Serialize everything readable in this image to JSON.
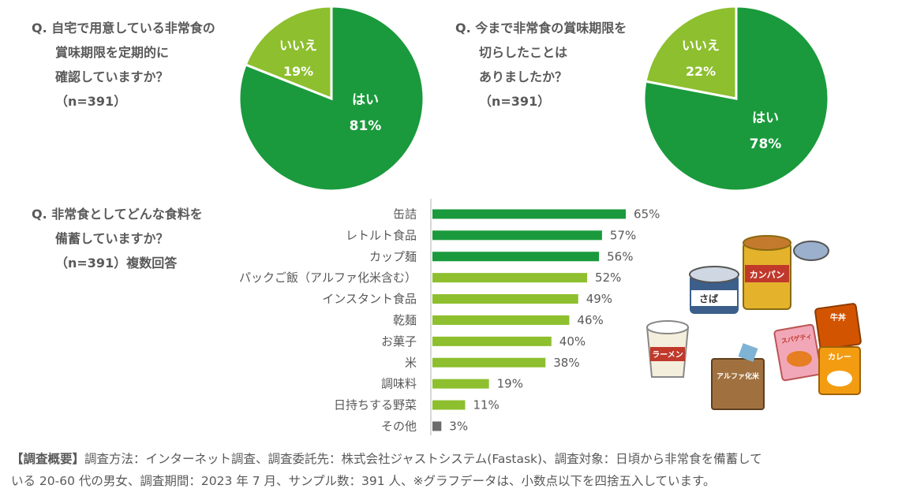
{
  "charts": [
    {
      "type": "pie",
      "question": [
        "Q.",
        "自宅で用意している非常食の",
        "賞味期限を定期的に",
        "確認していますか？",
        "（n=391）"
      ],
      "slices": [
        {
          "label": "はい",
          "value": 81,
          "value_label": "81%"
        },
        {
          "label": "いいえ",
          "value": 19,
          "value_label": "19%"
        }
      ]
    },
    {
      "type": "pie",
      "question": [
        "Q.",
        "今まで非常食の賞味期限を",
        "切らしたことは",
        "ありましたか？",
        "（n=391）"
      ],
      "slices": [
        {
          "label": "はい",
          "value": 78,
          "value_label": "78%"
        },
        {
          "label": "いいえ",
          "value": 22,
          "value_label": "22%"
        }
      ]
    }
  ],
  "chart_data": [
    {
      "type": "pie",
      "title": "自宅で用意している非常食の賞味期限を定期的に確認していますか？（n=391）",
      "categories": [
        "はい",
        "いいえ"
      ],
      "values": [
        81,
        19
      ]
    },
    {
      "type": "pie",
      "title": "今まで非常食の賞味期限を切らしたことはありましたか？（n=391）",
      "categories": [
        "はい",
        "いいえ"
      ],
      "values": [
        78,
        22
      ]
    },
    {
      "type": "bar",
      "orientation": "horizontal",
      "title": "非常食としてどんな食料を備蓄していますか？（n=391）複数回答",
      "categories": [
        "缶詰",
        "レトルト食品",
        "カップ麺",
        "パックご飯（アルファ化米含む）",
        "インスタント食品",
        "乾麺",
        "お菓子",
        "米",
        "調味料",
        "日持ちする野菜",
        "その他"
      ],
      "values": [
        65,
        57,
        56,
        52,
        49,
        46,
        40,
        38,
        19,
        11,
        3
      ],
      "value_labels": [
        "65%",
        "57%",
        "56%",
        "52%",
        "49%",
        "46%",
        "40%",
        "38%",
        "19%",
        "11%",
        "3%"
      ],
      "bar_colors": [
        "#1a9a3c",
        "#1a9a3c",
        "#1a9a3c",
        "#8dbf2e",
        "#8dbf2e",
        "#8dbf2e",
        "#8dbf2e",
        "#8dbf2e",
        "#8dbf2e",
        "#8dbf2e",
        "#6b6b6b"
      ],
      "xlim": [
        0,
        100
      ]
    }
  ],
  "bar_question": [
    "Q.",
    "非常食としてどんな食料を",
    "備蓄していますか？",
    "（n=391）複数回答"
  ],
  "illustration_labels": [
    "さば",
    "カンパン",
    "ラーメン",
    "スパゲティ",
    "牛丼",
    "カレー",
    "アルファ化米"
  ],
  "colors": {
    "yes": "#1a9a3c",
    "no": "#8dbf2e",
    "other": "#6b6b6b",
    "text": "#595959"
  },
  "footer": {
    "heading": "【調査概要】",
    "line1": "調査方法：インターネット調査、調査委託先：株式会社ジャストシステム(Fastask)、調査対象：日頃から非常食を備蓄して",
    "line2": "いる 20-60 代の男女、調査期間：2023 年 7 月、サンプル数：391 人、※グラフデータは、小数点以下を四捨五入しています。"
  }
}
